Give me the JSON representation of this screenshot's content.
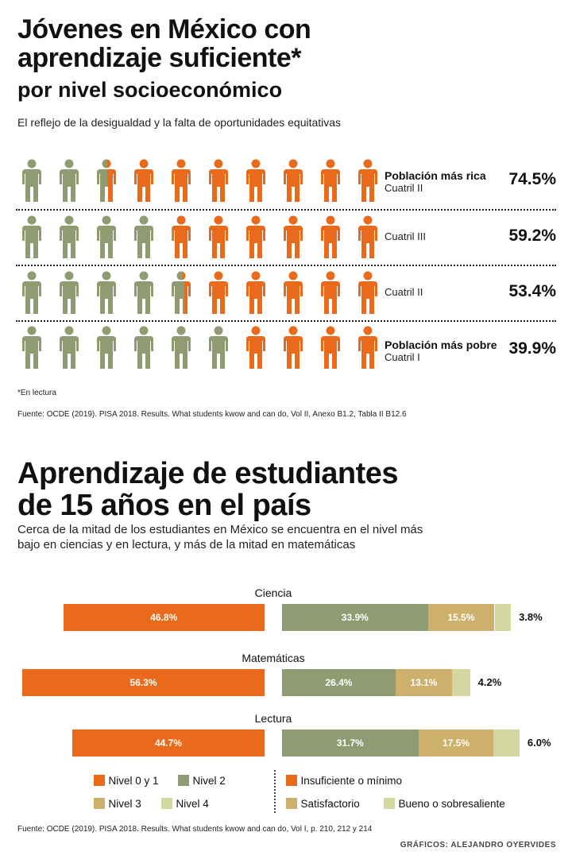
{
  "colors": {
    "orange": "#ea6a1b",
    "green": "#8f9c72",
    "tan": "#cdb06c",
    "pale": "#d4d8a0"
  },
  "header": {
    "title_line1": "Jóvenes en México con",
    "title_line2": "aprendizaje suficiente*",
    "title_line3": "por nivel socioeconómico",
    "subtitle": "El reflejo de la desigualdad y la falta de oportunidades equitativas"
  },
  "section1": {
    "footnote": "*En lectura",
    "source": "Fuente: OCDE (2019). PISA 2018. Results. What students kwow and can do, Vol II, Anexo B1.2, Tabla II B12.6"
  },
  "section2": {
    "title_line1": "Aprendizaje de estudiantes",
    "title_line2": "de 15 años en el país",
    "body_line1": "Cerca de la mitad de los estudiantes en México se encuentra en el nivel más",
    "body_line2": "bajo en ciencias y en lectura, y más de la mitad en matemáticas",
    "legend": {
      "n01": "Nivel 0 y 1",
      "n2": "Nivel 2",
      "n3": "Nivel 3",
      "n4": "Nivel 4",
      "ins": "Insuficiente o mínimo",
      "sat": "Satisfactorio",
      "bueno": "Bueno o sobresaliente"
    },
    "source": "Fuente: OCDE (2019). PISA 2018. Results. What students kwow and can do, Vol I, p. 210, 212 y 214",
    "credit": "GRÁFICOS: ALEJANDRO OYERVIDES"
  },
  "chart_data": [
    {
      "type": "pictograph",
      "icons_per_row": 10,
      "rows": [
        {
          "label": "Población más rica",
          "sublabel": "Cuatril II",
          "value": 74.5,
          "display": "74.5%"
        },
        {
          "label": "",
          "sublabel": "Cuatril III",
          "value": 59.2,
          "display": "59.2%"
        },
        {
          "label": "",
          "sublabel": "Cuatril II",
          "value": 53.4,
          "display": "53.4%"
        },
        {
          "label": "Población más pobre",
          "sublabel": "Cuatril I",
          "value": 39.9,
          "display": "39.9%"
        }
      ]
    },
    {
      "type": "bar",
      "stacked": true,
      "categories": [
        "Ciencia",
        "Matemáticas",
        "Lectura"
      ],
      "series": [
        {
          "name": "Nivel 0 y 1",
          "values": [
            46.8,
            56.3,
            44.7
          ],
          "labels": [
            "46.8%",
            "56.3%",
            "44.7%"
          ]
        },
        {
          "name": "Nivel 2",
          "values": [
            33.9,
            26.4,
            31.7
          ],
          "labels": [
            "33.9%",
            "26.4%",
            "31.7%"
          ]
        },
        {
          "name": "Nivel 3",
          "values": [
            15.5,
            13.1,
            17.5
          ],
          "labels": [
            "15.5%",
            "13.1%",
            "17.5%"
          ]
        },
        {
          "name": "Nivel 4",
          "values": [
            3.8,
            4.2,
            6.0
          ],
          "labels": [
            "3.8%",
            "4.2%",
            "6.0%"
          ]
        }
      ]
    }
  ]
}
